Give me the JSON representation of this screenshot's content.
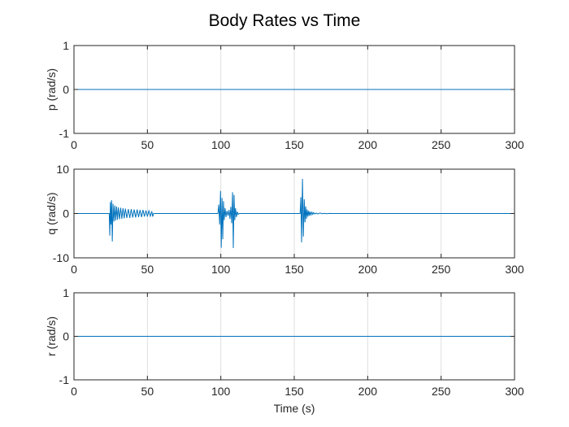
{
  "figure": {
    "title": "Body Rates vs Time"
  },
  "chart_data": [
    {
      "type": "line",
      "ylabel": "p (rad/s)",
      "xlabel": "",
      "xlim": [
        0,
        300
      ],
      "ylim": [
        -1,
        1
      ],
      "xticks": [
        0,
        50,
        100,
        150,
        200,
        250,
        300
      ],
      "yticks": [
        -1,
        0,
        1
      ],
      "grid": "x",
      "series": [
        {
          "color": "#0072bd",
          "x": [
            0,
            300
          ],
          "y": [
            0,
            0
          ]
        }
      ]
    },
    {
      "type": "line",
      "ylabel": "q (rad/s)",
      "xlabel": "",
      "xlim": [
        0,
        300
      ],
      "ylim": [
        -10,
        10
      ],
      "xticks": [
        0,
        50,
        100,
        150,
        200,
        250,
        300
      ],
      "yticks": [
        -10,
        0,
        10
      ],
      "grid": "x",
      "series": [
        {
          "color": "#0072bd",
          "x": [
            0,
            24,
            24.4,
            24.8,
            25.2,
            25.6,
            26.1,
            26.6,
            27.2,
            27.8,
            28.4,
            29.0,
            29.6,
            30.2,
            31.0,
            31.8,
            32.6,
            33.4,
            34.2,
            35.0,
            36.0,
            37.0,
            38.0,
            39.0,
            40.0,
            41.0,
            42.0,
            43.0,
            44.0,
            45.0,
            46.0,
            47.0,
            48.0,
            49.0,
            50.0,
            51.0,
            52.0,
            53.0,
            53.6,
            54.2,
            98,
            98.6,
            99.2,
            99.8,
            100.3,
            100.8,
            101.3,
            101.8,
            102.3,
            102.9,
            103.5,
            104.2,
            104.9,
            105.6,
            106.2,
            106.8,
            107.4,
            108.0,
            108.5,
            109.0,
            109.5,
            110.0,
            110.6,
            111.2,
            111.8,
            112.5,
            154,
            154.5,
            155.0,
            155.6,
            156.2,
            156.8,
            157.3,
            157.8,
            158.3,
            158.8,
            159.3,
            159.8,
            160.3,
            160.8,
            161.4,
            162.0,
            162.6,
            163.2,
            164.0,
            165.0,
            166.0,
            167.5,
            169.0,
            170.5,
            172.0,
            174.0,
            176.0,
            178.0,
            300
          ],
          "y": [
            0,
            0,
            -5,
            2.6,
            -2.5,
            3.0,
            -6.3,
            2.2,
            -1.8,
            1.8,
            -1.6,
            1.6,
            -1.4,
            1.4,
            -1.3,
            1.3,
            -1.2,
            1.2,
            -1.1,
            1.1,
            -1.0,
            1.0,
            -1.0,
            1.0,
            -0.9,
            0.9,
            -0.9,
            0.9,
            -0.8,
            0.8,
            -0.8,
            0.8,
            -0.7,
            0.7,
            -0.7,
            0.6,
            -0.6,
            0.5,
            -0.7,
            0,
            0,
            2.0,
            -2.5,
            5.1,
            -7.7,
            3.5,
            -5.8,
            2.8,
            -1.5,
            1.2,
            -0.8,
            0.6,
            -0.5,
            0.8,
            -1.2,
            1.5,
            -2.2,
            4.8,
            -7.8,
            4.2,
            -1.5,
            1.2,
            -0.8,
            0.4,
            -0.2,
            0,
            0,
            3.7,
            -6.5,
            7.8,
            -5.2,
            3.2,
            -2.0,
            1.6,
            -1.2,
            0.9,
            -0.7,
            0.6,
            -0.5,
            0.4,
            -0.3,
            0.3,
            -0.2,
            0.2,
            -0.1,
            0.1,
            -0.1,
            0.1,
            -0.05,
            0.05,
            -0.05,
            0.02,
            0,
            0,
            0
          ]
        }
      ]
    },
    {
      "type": "line",
      "ylabel": "r (rad/s)",
      "xlabel": "Time (s)",
      "xlim": [
        0,
        300
      ],
      "ylim": [
        -1,
        1
      ],
      "xticks": [
        0,
        50,
        100,
        150,
        200,
        250,
        300
      ],
      "yticks": [
        -1,
        0,
        1
      ],
      "grid": "x",
      "series": [
        {
          "color": "#0072bd",
          "x": [
            0,
            300
          ],
          "y": [
            0,
            0
          ]
        }
      ]
    }
  ]
}
